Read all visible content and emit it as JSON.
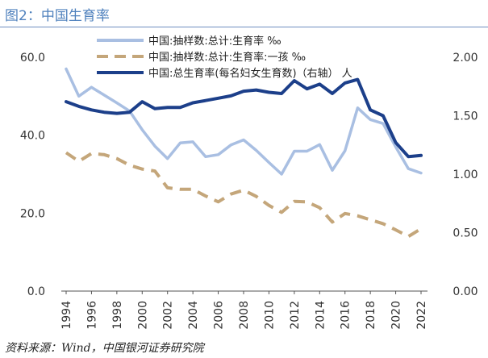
{
  "header": {
    "title": "图2：中国生育率"
  },
  "footer": {
    "source": "资料来源：Wind，中国银河证券研究院"
  },
  "chart_data": {
    "type": "line",
    "title": "图2：中国生育率",
    "x": [
      1994,
      1995,
      1996,
      1997,
      1998,
      1999,
      2000,
      2001,
      2002,
      2003,
      2004,
      2005,
      2006,
      2007,
      2008,
      2009,
      2010,
      2011,
      2012,
      2013,
      2014,
      2015,
      2016,
      2017,
      2018,
      2019,
      2020,
      2021,
      2022
    ],
    "x_ticks": [
      "1994",
      "1996",
      "1998",
      "2000",
      "2002",
      "2004",
      "2006",
      "2008",
      "2010",
      "2012",
      "2014",
      "2016",
      "2018",
      "2020",
      "2022"
    ],
    "left_axis": {
      "ylim": [
        0,
        60
      ],
      "ticks": [
        "0.0",
        "20.0",
        "40.0",
        "60.0"
      ]
    },
    "right_axis": {
      "ylim": [
        0,
        2
      ],
      "ticks": [
        "0.00",
        "0.50",
        "1.00",
        "1.50",
        "2.00"
      ]
    },
    "series": [
      {
        "name": "中国:抽样数:总计:生育率 ‰",
        "axis": "left",
        "color": "#a9bfe2",
        "style": "solid",
        "values": [
          57.0,
          50.0,
          52.3,
          50.3,
          48.3,
          46.2,
          41.4,
          37.2,
          34.0,
          38.0,
          38.3,
          34.5,
          35.0,
          37.5,
          38.8,
          36.1,
          33.0,
          30.0,
          35.9,
          35.9,
          37.6,
          31.0,
          36.0,
          47.0,
          44.0,
          43.0,
          37.0,
          31.4,
          30.3
        ]
      },
      {
        "name": "中国:抽样数:总计:生育率:一孩 ‰",
        "axis": "left",
        "color": "#c4a67a",
        "style": "dashed",
        "values": [
          35.5,
          33.3,
          35.3,
          35.0,
          34.0,
          32.3,
          31.3,
          30.8,
          26.5,
          26.1,
          26.1,
          24.4,
          22.9,
          24.9,
          25.9,
          24.3,
          22.0,
          20.2,
          23.0,
          22.9,
          21.4,
          17.7,
          19.9,
          19.3,
          18.3,
          17.3,
          15.7,
          14.0,
          16.0
        ]
      },
      {
        "name": "中国:总生育率(每名妇女生育数)（右轴） 人",
        "axis": "right",
        "color": "#1c3f8a",
        "style": "solid",
        "values": [
          1.62,
          1.58,
          1.55,
          1.53,
          1.52,
          1.53,
          1.62,
          1.56,
          1.57,
          1.57,
          1.61,
          1.63,
          1.65,
          1.67,
          1.71,
          1.72,
          1.7,
          1.69,
          1.8,
          1.73,
          1.77,
          1.69,
          1.78,
          1.81,
          1.55,
          1.5,
          1.27,
          1.15,
          1.16
        ]
      }
    ]
  }
}
